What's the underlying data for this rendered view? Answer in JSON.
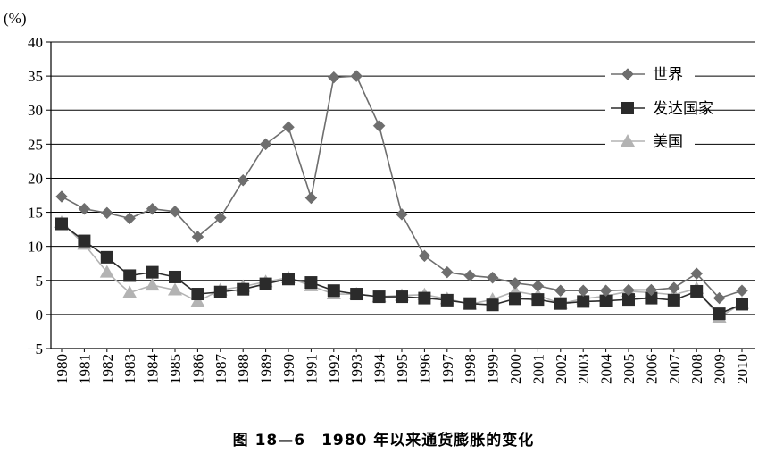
{
  "chart_data": {
    "type": "line",
    "ylabel": "(%)",
    "ylim": [
      -5,
      40
    ],
    "yticks": [
      -5,
      0,
      5,
      10,
      15,
      20,
      25,
      30,
      35,
      40
    ],
    "categories": [
      "1980",
      "1981",
      "1982",
      "1983",
      "1984",
      "1985",
      "1986",
      "1987",
      "1988",
      "1989",
      "1990",
      "1991",
      "1992",
      "1993",
      "1994",
      "1995",
      "1996",
      "1997",
      "1998",
      "1999",
      "2000",
      "2001",
      "2002",
      "2003",
      "2004",
      "2005",
      "2006",
      "2007",
      "2008",
      "2009",
      "2010"
    ],
    "grid": "horizontal",
    "legend_position": "top-right",
    "series": [
      {
        "name": "世界",
        "marker": "diamond",
        "color": "#6e6e6e",
        "values": [
          17.3,
          15.5,
          14.9,
          14.1,
          15.5,
          15.1,
          11.4,
          14.2,
          19.7,
          25.0,
          27.5,
          17.1,
          34.8,
          35.0,
          27.7,
          14.7,
          8.6,
          6.2,
          5.7,
          5.4,
          4.6,
          4.2,
          3.5,
          3.5,
          3.5,
          3.6,
          3.6,
          3.9,
          6.0,
          2.4,
          3.5
        ]
      },
      {
        "name": "发达国家",
        "marker": "square",
        "color": "#2b2b2b",
        "values": [
          13.3,
          10.8,
          8.4,
          5.7,
          6.2,
          5.5,
          3.0,
          3.3,
          3.7,
          4.5,
          5.2,
          4.7,
          3.5,
          3.0,
          2.6,
          2.6,
          2.4,
          2.1,
          1.6,
          1.4,
          2.3,
          2.2,
          1.6,
          1.9,
          2.0,
          2.2,
          2.4,
          2.1,
          3.4,
          0.1,
          1.5
        ]
      },
      {
        "name": "美国",
        "marker": "triangle",
        "color": "#b3b3b3",
        "values": [
          13.5,
          10.3,
          6.2,
          3.2,
          4.3,
          3.6,
          1.9,
          3.6,
          4.1,
          4.8,
          5.4,
          4.2,
          3.0,
          3.0,
          2.6,
          2.8,
          2.9,
          2.3,
          1.5,
          2.2,
          3.4,
          2.8,
          1.6,
          2.3,
          2.7,
          3.4,
          3.2,
          2.9,
          3.8,
          -0.4,
          1.6
        ]
      }
    ]
  },
  "caption": "图 18—6　1980 年以来通货膨胀的变化"
}
